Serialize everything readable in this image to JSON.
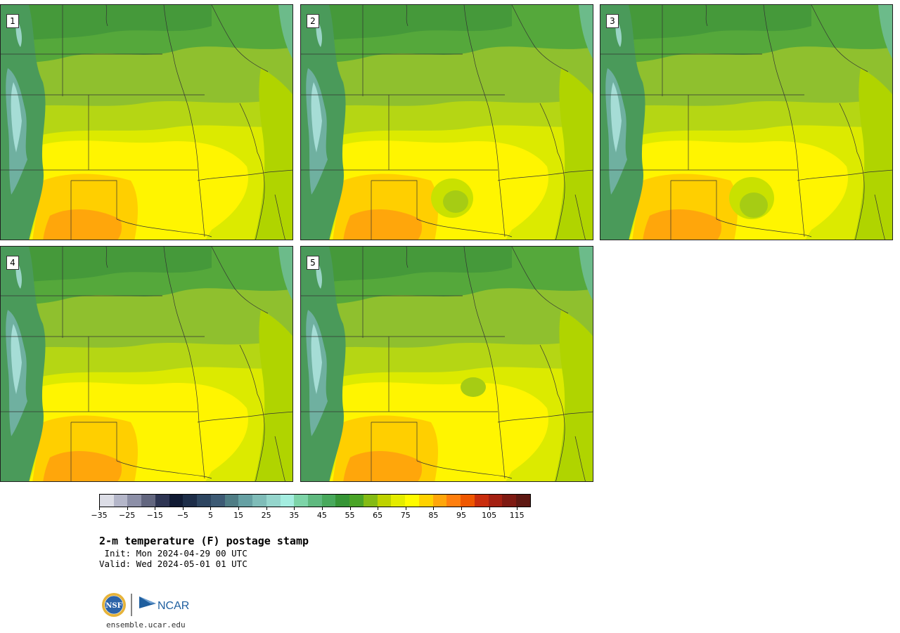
{
  "panels": [
    {
      "label": "1"
    },
    {
      "label": "2"
    },
    {
      "label": "3"
    },
    {
      "label": "4"
    },
    {
      "label": "5"
    }
  ],
  "colorbar": {
    "colors": [
      "#dcdde6",
      "#b4b6c9",
      "#8c8fa7",
      "#62667f",
      "#2e3553",
      "#101a33",
      "#1d2d48",
      "#2d4560",
      "#3d5a74",
      "#4f7d85",
      "#66a0a3",
      "#7fbcb8",
      "#95d5cc",
      "#a4ede0",
      "#7dd4a8",
      "#5fb97f",
      "#48a95c",
      "#369536",
      "#4aa427",
      "#84bb15",
      "#bed200",
      "#e4ec00",
      "#fffb00",
      "#ffd200",
      "#ffa60b",
      "#ff7f0e",
      "#ef5700",
      "#c92d0d",
      "#a42012",
      "#7e1a12",
      "#5e1812"
    ],
    "tick_labels": [
      "−35",
      "−25",
      "−15",
      "−5",
      "5",
      "15",
      "25",
      "35",
      "45",
      "55",
      "65",
      "75",
      "85",
      "95",
      "105",
      "115"
    ]
  },
  "title": "2-m temperature (F) postage stamp",
  "init": " Init: Mon 2024-04-29 00 UTC",
  "valid": "Valid: Wed 2024-05-01 01 UTC",
  "logos": {
    "nsf": "NSF",
    "ncar": "NCAR"
  },
  "footer": "ensemble.ucar.edu"
}
